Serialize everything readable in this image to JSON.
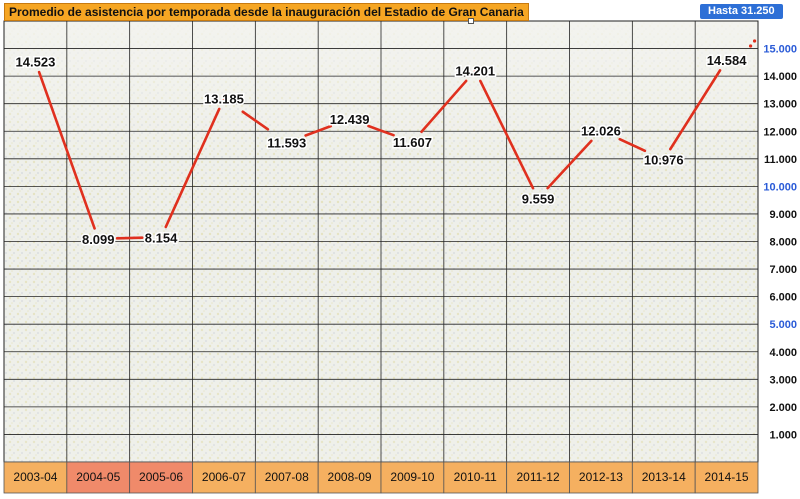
{
  "title": "Promedio de asistencia por temporada desde la inauguración del Estadio de Gran Canaria",
  "badge": "Hasta 31.250",
  "colors": {
    "title_bg": "#f6a623",
    "badge_bg": "#2d6fd6",
    "line": "#e0301e",
    "category_bg": "#f5b060",
    "category_bg_alt": "#f08a6a",
    "grid": "#222222",
    "tick_blue": "#2a5bd7"
  },
  "chart_data": {
    "type": "line",
    "categories": [
      "2003-04",
      "2004-05",
      "2005-06",
      "2006-07",
      "2007-08",
      "2008-09",
      "2009-10",
      "2010-11",
      "2011-12",
      "2012-13",
      "2013-14",
      "2014-15"
    ],
    "series": [
      {
        "values": [
          14523,
          8099,
          8154,
          13185,
          11593,
          12439,
          11607,
          14201,
          9559,
          12026,
          10976,
          14584
        ]
      }
    ],
    "data_labels": [
      "14.523",
      "8.099",
      "8.154",
      "13.185",
      "11.593",
      "12.439",
      "11.607",
      "14.201",
      "9.559",
      "12.026",
      "10.976",
      "14.584"
    ],
    "y_ticks": [
      {
        "value": 1000,
        "label": "1.000"
      },
      {
        "value": 2000,
        "label": "2.000"
      },
      {
        "value": 3000,
        "label": "3.000"
      },
      {
        "value": 4000,
        "label": "4.000"
      },
      {
        "value": 5000,
        "label": "5.000",
        "highlight": true
      },
      {
        "value": 6000,
        "label": "6.000"
      },
      {
        "value": 7000,
        "label": "7.000"
      },
      {
        "value": 8000,
        "label": "8.000"
      },
      {
        "value": 9000,
        "label": "9.000"
      },
      {
        "value": 10000,
        "label": "10.000",
        "highlight": true
      },
      {
        "value": 11000,
        "label": "11.000"
      },
      {
        "value": 12000,
        "label": "12.000"
      },
      {
        "value": 13000,
        "label": "13.000"
      },
      {
        "value": 14000,
        "label": "14.000"
      },
      {
        "value": 15000,
        "label": "15.000",
        "highlight": true
      }
    ],
    "ylim": [
      0,
      16000
    ],
    "grid": true,
    "highlighted_categories": [
      "2004-05",
      "2005-06"
    ],
    "title": "Promedio de asistencia por temporada desde la inauguración del Estadio de Gran Canaria",
    "xlabel": "",
    "ylabel": ""
  }
}
